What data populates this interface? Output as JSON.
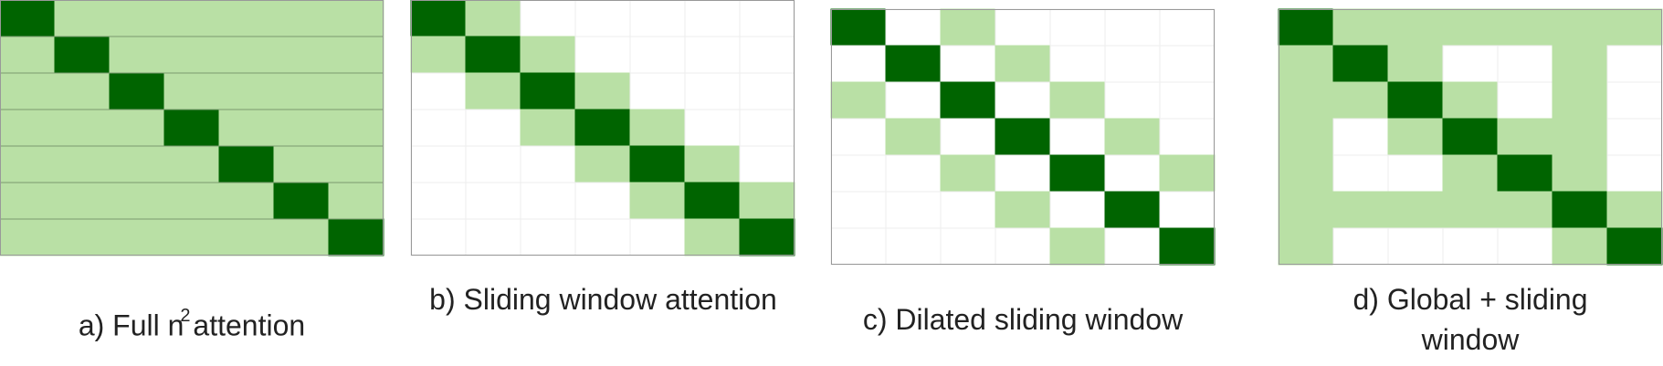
{
  "panels": [
    {
      "caption_before": "a) Full n",
      "caption_superscript": "2",
      "caption_after": " attention"
    },
    {
      "caption": "b) Sliding window attention"
    },
    {
      "caption": "c) Dilated sliding window"
    },
    {
      "caption": "d) Global + sliding window"
    }
  ]
}
